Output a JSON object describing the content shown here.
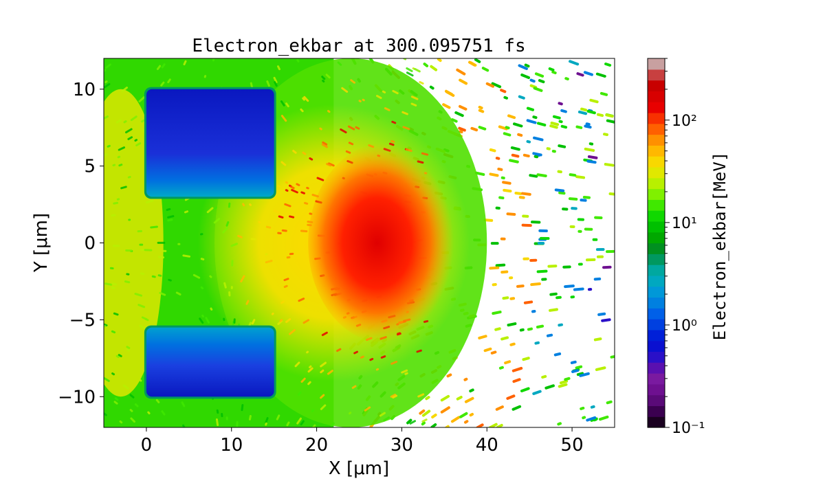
{
  "chart_data": {
    "type": "heatmap",
    "title": "Electron_ekbar at 300.095751 fs",
    "xlabel": "X [μm]",
    "ylabel": "Y [μm]",
    "xlim": [
      -5,
      55
    ],
    "ylim": [
      -12,
      12
    ],
    "x_ticks": [
      0,
      10,
      20,
      30,
      40,
      50
    ],
    "x_tick_labels": [
      "0",
      "10",
      "20",
      "30",
      "40",
      "50"
    ],
    "y_ticks": [
      -10,
      -5,
      0,
      5,
      10
    ],
    "y_tick_labels": [
      "−10",
      "−5",
      "0",
      "5",
      "10"
    ],
    "colorbar": {
      "label": "Electron_ekbar[MeV]",
      "scale": "log",
      "range": [
        0.1,
        400
      ],
      "tick_values": [
        0.1,
        1,
        10,
        100
      ],
      "tick_labels": [
        "10⁻¹",
        "10⁰",
        "10¹",
        "10²"
      ],
      "colors": [
        "#1a0020",
        "#3b0050",
        "#5a0a78",
        "#6e1090",
        "#7a1aa0",
        "#5a10b0",
        "#2a10c8",
        "#0a10d0",
        "#0020d8",
        "#0040e0",
        "#0060e8",
        "#0080e0",
        "#0098d8",
        "#00a8c0",
        "#00a8a0",
        "#009860",
        "#009020",
        "#00a800",
        "#00c000",
        "#10d800",
        "#40e800",
        "#80f000",
        "#b8f000",
        "#e0e800",
        "#f8d800",
        "#ffb800",
        "#ff9000",
        "#ff6000",
        "#f83000",
        "#e80000",
        "#d80000",
        "#c80000",
        "#c84040",
        "#c8a0a0"
      ]
    },
    "features": [
      {
        "shape": "rect",
        "x": [
          0,
          15
        ],
        "y": [
          3,
          10
        ],
        "value_MeV": 0.6
      },
      {
        "shape": "rect",
        "x": [
          0,
          15
        ],
        "y": [
          -10,
          -5.5
        ],
        "value_MeV": 0.6
      },
      {
        "shape": "ellipse",
        "center": [
          28,
          0
        ],
        "radii": [
          7,
          4.5
        ],
        "value_MeV": 200
      }
    ]
  }
}
